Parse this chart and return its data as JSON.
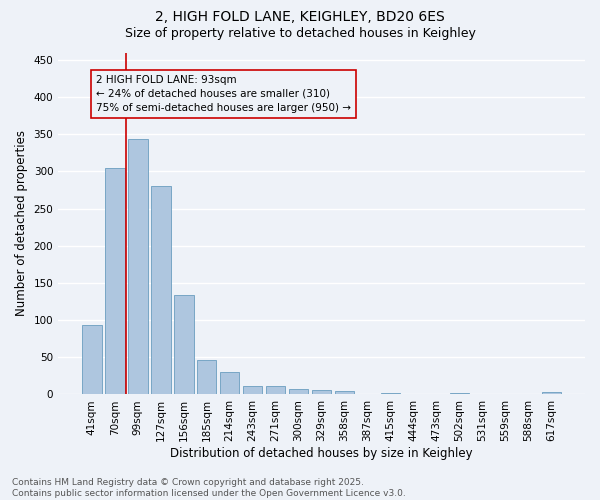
{
  "title_line1": "2, HIGH FOLD LANE, KEIGHLEY, BD20 6ES",
  "title_line2": "Size of property relative to detached houses in Keighley",
  "xlabel": "Distribution of detached houses by size in Keighley",
  "ylabel": "Number of detached properties",
  "categories": [
    "41sqm",
    "70sqm",
    "99sqm",
    "127sqm",
    "156sqm",
    "185sqm",
    "214sqm",
    "243sqm",
    "271sqm",
    "300sqm",
    "329sqm",
    "358sqm",
    "387sqm",
    "415sqm",
    "444sqm",
    "473sqm",
    "502sqm",
    "531sqm",
    "559sqm",
    "588sqm",
    "617sqm"
  ],
  "values": [
    93,
    305,
    344,
    281,
    134,
    46,
    30,
    11,
    11,
    8,
    6,
    5,
    1,
    2,
    1,
    1,
    2,
    0,
    1,
    0,
    3
  ],
  "bar_color": "#aec6df",
  "bar_edge_color": "#6a9dbf",
  "bg_color": "#eef2f8",
  "grid_color": "#ffffff",
  "annotation_box_text": "2 HIGH FOLD LANE: 93sqm\n← 24% of detached houses are smaller (310)\n75% of semi-detached houses are larger (950) →",
  "vline_color": "#cc0000",
  "annotation_box_color": "#cc0000",
  "ylim": [
    0,
    460
  ],
  "yticks": [
    0,
    50,
    100,
    150,
    200,
    250,
    300,
    350,
    400,
    450
  ],
  "footer_line1": "Contains HM Land Registry data © Crown copyright and database right 2025.",
  "footer_line2": "Contains public sector information licensed under the Open Government Licence v3.0.",
  "title_fontsize": 10,
  "subtitle_fontsize": 9,
  "axis_label_fontsize": 8.5,
  "tick_fontsize": 7.5,
  "annotation_fontsize": 7.5,
  "footer_fontsize": 6.5
}
